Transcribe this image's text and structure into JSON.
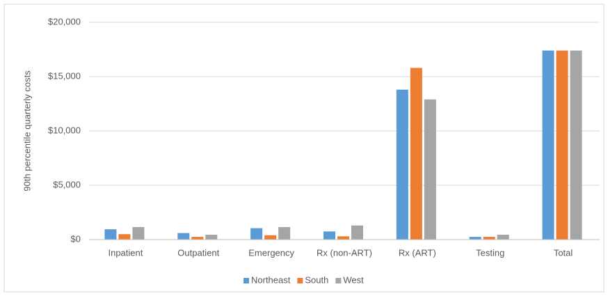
{
  "chart_data": {
    "type": "bar",
    "y_label": "90th percentile quarterly costs",
    "categories": [
      "Inpatient",
      "Outpatient",
      "Emergency",
      "Rx (non-ART)",
      "Rx (ART)",
      "Testing",
      "Total"
    ],
    "series": [
      {
        "name": "Northeast",
        "color": "#5b9bd5",
        "values": [
          950,
          600,
          1050,
          750,
          13800,
          250,
          17400
        ]
      },
      {
        "name": "South",
        "color": "#ed7d31",
        "values": [
          500,
          250,
          400,
          300,
          15800,
          250,
          17400
        ]
      },
      {
        "name": "West",
        "color": "#a5a5a5",
        "values": [
          1150,
          450,
          1150,
          1300,
          12900,
          450,
          17400
        ]
      }
    ],
    "ylim": [
      0,
      20000
    ],
    "yticks": [
      {
        "value": 0,
        "label": "$0"
      },
      {
        "value": 5000,
        "label": "$5,000"
      },
      {
        "value": 10000,
        "label": "$10,000"
      },
      {
        "value": 15000,
        "label": "$15,000"
      },
      {
        "value": 20000,
        "label": "$20,000"
      }
    ],
    "grid": true,
    "legend": "bottom"
  }
}
